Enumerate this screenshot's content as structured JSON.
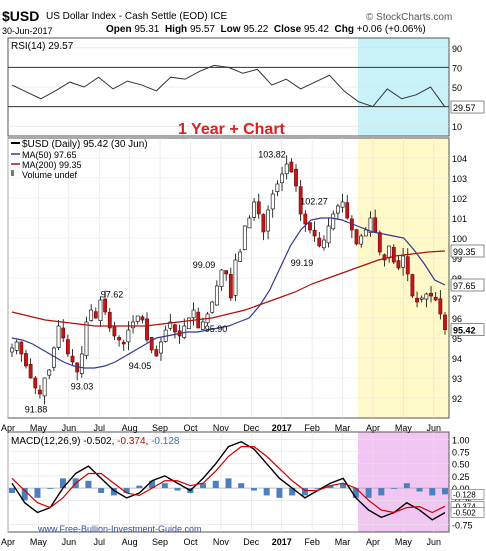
{
  "header": {
    "symbol": "$USD",
    "name": "US Dollar Index - Cash Settle (EOD)",
    "exchange": "ICE",
    "copyright": "© StockCharts.com",
    "date": "30-Jun-2017",
    "open_label": "Open",
    "open": "95.31",
    "high_label": "High",
    "high": "95.57",
    "low_label": "Low",
    "low": "95.22",
    "close_label": "Close",
    "close": "95.42",
    "chg_label": "Chg",
    "chg": "+0.06 (+0.06%)"
  },
  "annotation_title": "1 Year + Chart",
  "watermark": "www.Free-Bullion-Investment-Guide.com",
  "colors": {
    "accent": "#cc0000",
    "ma50": "#2e3b8f",
    "ma200": "#b01010",
    "cyan_zone": "#c8f2f8",
    "yellow_zone": "#fff8c8",
    "pink_zone": "#f2c6f2"
  },
  "chart_data": [
    {
      "type": "line",
      "panel": "RSI",
      "legend": "RSI(14) 29.57",
      "ylim": [
        0,
        100
      ],
      "ticks": [
        "90",
        "70",
        "50",
        "30",
        "10"
      ],
      "tick_values": [
        90,
        70,
        50,
        30,
        10
      ],
      "reference_lines": [
        70,
        30
      ],
      "last_value_label": "29.57",
      "last_value": 29.57,
      "x": [
        "Apr",
        "",
        "May",
        "",
        "Jun",
        "",
        "Jul",
        "",
        "Aug",
        "",
        "Sep",
        "",
        "Oct",
        "",
        "Nov",
        "",
        "Dec",
        "",
        "2017",
        "",
        "Feb",
        "",
        "Mar",
        "",
        "Apr",
        "",
        "May",
        "",
        "Jun",
        "",
        ""
      ],
      "values": [
        52,
        45,
        38,
        46,
        55,
        50,
        60,
        48,
        56,
        52,
        46,
        60,
        58,
        66,
        72,
        70,
        64,
        68,
        52,
        58,
        48,
        55,
        62,
        46,
        35,
        30,
        48,
        38,
        42,
        50,
        29.57
      ]
    },
    {
      "type": "candlestick",
      "panel": "Price",
      "legend": [
        "$USD (Daily) 95.42 (30 Jun)",
        "MA(50) 97.65",
        "MA(200) 99.35",
        "Volume undef"
      ],
      "ylim": [
        91,
        105
      ],
      "ticks": [
        "104",
        "103",
        "102",
        "101",
        "100",
        "99",
        "98",
        "97",
        "96",
        "95",
        "94",
        "93",
        "92"
      ],
      "tick_values": [
        104,
        103,
        102,
        101,
        100,
        99,
        98,
        97,
        96,
        95,
        94,
        93,
        92
      ],
      "x_ticks": [
        "Apr",
        "May",
        "Jun",
        "Jul",
        "Aug",
        "Sep",
        "Oct",
        "Nov",
        "Dec",
        "2017",
        "Feb",
        "Mar",
        "Apr",
        "May",
        "Jun"
      ],
      "close": [
        94.5,
        94.8,
        94.2,
        93.6,
        93.0,
        92.5,
        92.2,
        93.0,
        93.4,
        94.5,
        95.6,
        95.0,
        94.2,
        93.8,
        93.3,
        94.2,
        95.8,
        96.4,
        96.0,
        96.9,
        96.3,
        95.5,
        95.1,
        94.9,
        94.7,
        95.4,
        95.8,
        96.1,
        95.9,
        94.9,
        94.4,
        94.1,
        94.8,
        95.4,
        95.8,
        95.3,
        95.1,
        95.6,
        96.0,
        96.4,
        95.5,
        95.8,
        96.2,
        96.8,
        97.6,
        98.4,
        98.2,
        97.0,
        98.9,
        99.3,
        100.6,
        101.0,
        101.8,
        101.2,
        100.3,
        101.4,
        102.2,
        102.7,
        103.2,
        103.7,
        103.3,
        102.6,
        101.2,
        100.7,
        100.4,
        100.1,
        99.6,
        99.9,
        100.6,
        101.2,
        101.6,
        101.8,
        101.0,
        100.4,
        99.7,
        100.1,
        100.4,
        101.0,
        100.3,
        99.3,
        98.9,
        99.6,
        98.8,
        98.5,
        99.1,
        98.2,
        97.1,
        96.8,
        97.0,
        97.2,
        97.1,
        96.9,
        96.2,
        95.42
      ],
      "ma50": [
        95.0,
        94.9,
        94.7,
        94.4,
        94.1,
        93.8,
        93.6,
        93.5,
        93.5,
        93.6,
        93.8,
        94.1,
        94.4,
        94.7,
        95.0,
        95.1,
        95.2,
        95.3,
        95.3,
        95.4,
        95.5,
        95.6,
        95.8,
        96.0,
        96.6,
        97.4,
        98.5,
        99.6,
        100.4,
        100.9,
        101.0,
        101.0,
        100.9,
        100.7,
        100.5,
        100.3,
        100.2,
        100.1,
        100.0,
        99.4,
        98.7,
        97.9,
        97.65
      ],
      "ma200": [
        96.3,
        96.1,
        95.9,
        95.8,
        95.7,
        95.6,
        95.6,
        95.6,
        95.6,
        95.7,
        95.8,
        95.9,
        96.0,
        96.2,
        96.4,
        96.7,
        97.0,
        97.3,
        97.7,
        98.0,
        98.3,
        98.6,
        98.9,
        99.1,
        99.2,
        99.3,
        99.35
      ],
      "annotations": [
        {
          "label": "91.88",
          "value": 91.88
        },
        {
          "label": "93.03",
          "value": 93.03
        },
        {
          "label": "97.62",
          "value": 97.62
        },
        {
          "label": "94.05",
          "value": 94.05
        },
        {
          "label": "95.90",
          "value": 95.9
        },
        {
          "label": "99.09",
          "value": 99.09
        },
        {
          "label": "103.82",
          "value": 103.82
        },
        {
          "label": "102.27",
          "value": 102.27
        },
        {
          "label": "99.19",
          "value": 99.19
        }
      ],
      "last_labels": [
        {
          "text": "99.35",
          "value": 99.35
        },
        {
          "text": "97.65",
          "value": 97.65
        },
        {
          "text": "95.42",
          "value": 95.42
        }
      ]
    },
    {
      "type": "line",
      "panel": "MACD",
      "legend_prefix": "MACD(12,26,9) -0.502",
      "legend_signal": "-0.374",
      "legend_hist": "-0.128",
      "ylim": [
        -0.9,
        1.15
      ],
      "ticks": [
        "1.00",
        "0.75",
        "0.50",
        "0.25",
        "0.00",
        "-0.25",
        "-0.75"
      ],
      "tick_values": [
        1.0,
        0.75,
        0.5,
        0.25,
        0.0,
        -0.25,
        -0.75
      ],
      "value_labels": [
        {
          "text": "-0.128",
          "value": -0.128
        },
        {
          "text": "-0.374",
          "value": -0.374
        },
        {
          "text": "-0.502",
          "value": -0.502
        }
      ],
      "x_ticks": [
        "Apr",
        "May",
        "Jun",
        "Jul",
        "Aug",
        "Sep",
        "Oct",
        "Nov",
        "Dec",
        "2017",
        "Feb",
        "Mar",
        "Apr",
        "May",
        "Jun"
      ],
      "macd": [
        0.1,
        -0.3,
        -0.5,
        -0.4,
        0.0,
        0.3,
        0.45,
        0.2,
        -0.05,
        -0.2,
        -0.1,
        0.15,
        0.25,
        0.1,
        -0.05,
        0.2,
        0.5,
        0.85,
        0.95,
        0.8,
        0.5,
        0.2,
        0.0,
        -0.2,
        -0.05,
        0.1,
        0.2,
        -0.2,
        -0.45,
        -0.6,
        -0.5,
        -0.3,
        -0.45,
        -0.65,
        -0.502
      ],
      "signal": [
        0.2,
        -0.05,
        -0.3,
        -0.4,
        -0.2,
        0.1,
        0.3,
        0.3,
        0.1,
        -0.1,
        -0.15,
        0.0,
        0.15,
        0.15,
        0.05,
        0.1,
        0.35,
        0.65,
        0.85,
        0.85,
        0.65,
        0.4,
        0.15,
        -0.05,
        -0.05,
        0.05,
        0.1,
        0.0,
        -0.25,
        -0.45,
        -0.5,
        -0.4,
        -0.38,
        -0.5,
        -0.374
      ]
    }
  ]
}
